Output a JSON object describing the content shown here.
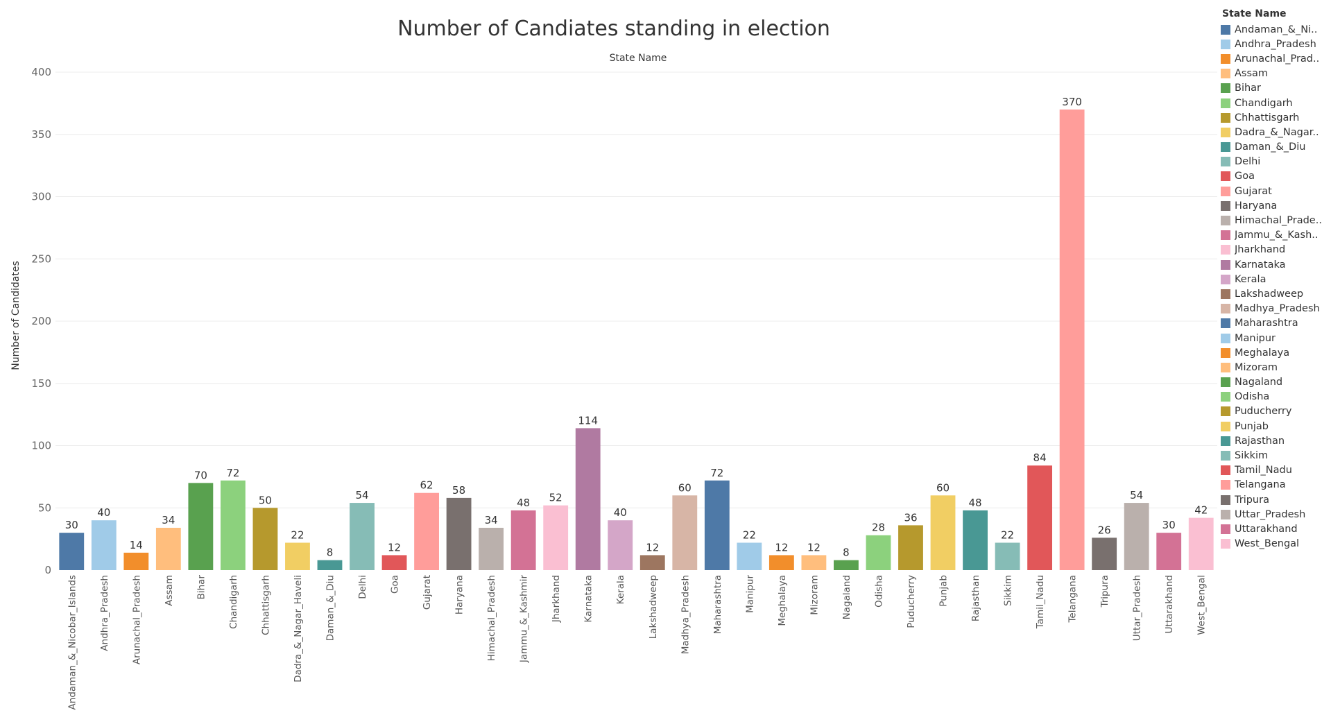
{
  "chart_data": {
    "type": "bar",
    "title": "Number of Candiates standing in election",
    "header_label": "State Name",
    "ylabel": "Number of Candidates",
    "ylim": [
      0,
      400
    ],
    "yticks": [
      0,
      50,
      100,
      150,
      200,
      250,
      300,
      350,
      400
    ],
    "grid": true,
    "legend_position": "right",
    "legend_title": "State Name",
    "categories": [
      "Andaman_&_Nicobar_Islands",
      "Andhra_Pradesh",
      "Arunachal_Pradesh",
      "Assam",
      "Bihar",
      "Chandigarh",
      "Chhattisgarh",
      "Dadra_&_Nagar_Haveli",
      "Daman_&_Diu",
      "Delhi",
      "Goa",
      "Gujarat",
      "Haryana",
      "Himachal_Pradesh",
      "Jammu_&_Kashmir",
      "Jharkhand",
      "Karnataka",
      "Kerala",
      "Lakshadweep",
      "Madhya_Pradesh",
      "Maharashtra",
      "Manipur",
      "Meghalaya",
      "Mizoram",
      "Nagaland",
      "Odisha",
      "Puducherry",
      "Punjab",
      "Rajasthan",
      "Sikkim",
      "Tamil_Nadu",
      "Telangana",
      "Tripura",
      "Uttar_Pradesh",
      "Uttarakhand",
      "West_Bengal"
    ],
    "values": [
      30,
      40,
      14,
      34,
      70,
      72,
      50,
      22,
      8,
      54,
      12,
      62,
      58,
      34,
      48,
      52,
      114,
      40,
      12,
      60,
      72,
      22,
      12,
      12,
      8,
      28,
      36,
      60,
      48,
      22,
      84,
      370,
      26,
      54,
      30,
      42
    ],
    "legend_labels": [
      "Andaman_&_Ni..",
      "Andhra_Pradesh",
      "Arunachal_Prad..",
      "Assam",
      "Bihar",
      "Chandigarh",
      "Chhattisgarh",
      "Dadra_&_Nagar..",
      "Daman_&_Diu",
      "Delhi",
      "Goa",
      "Gujarat",
      "Haryana",
      "Himachal_Prade..",
      "Jammu_&_Kash..",
      "Jharkhand",
      "Karnataka",
      "Kerala",
      "Lakshadweep",
      "Madhya_Pradesh",
      "Maharashtra",
      "Manipur",
      "Meghalaya",
      "Mizoram",
      "Nagaland",
      "Odisha",
      "Puducherry",
      "Punjab",
      "Rajasthan",
      "Sikkim",
      "Tamil_Nadu",
      "Telangana",
      "Tripura",
      "Uttar_Pradesh",
      "Uttarakhand",
      "West_Bengal"
    ],
    "colors": [
      "#4e79a7",
      "#a0cbe8",
      "#f28e2b",
      "#ffbe7d",
      "#59a14f",
      "#8cd17d",
      "#b6992d",
      "#f1ce63",
      "#499894",
      "#86bcb6",
      "#e15759",
      "#ff9d9a",
      "#79706e",
      "#bab0ac",
      "#d37295",
      "#fabfd2",
      "#b07aa1",
      "#d4a6c8",
      "#9d7660",
      "#d7b5a6",
      "#4e79a7",
      "#a0cbe8",
      "#f28e2b",
      "#ffbe7d",
      "#59a14f",
      "#8cd17d",
      "#b6992d",
      "#f1ce63",
      "#499894",
      "#86bcb6",
      "#e15759",
      "#ff9d9a",
      "#79706e",
      "#bab0ac",
      "#d37295",
      "#fabfd2"
    ]
  }
}
